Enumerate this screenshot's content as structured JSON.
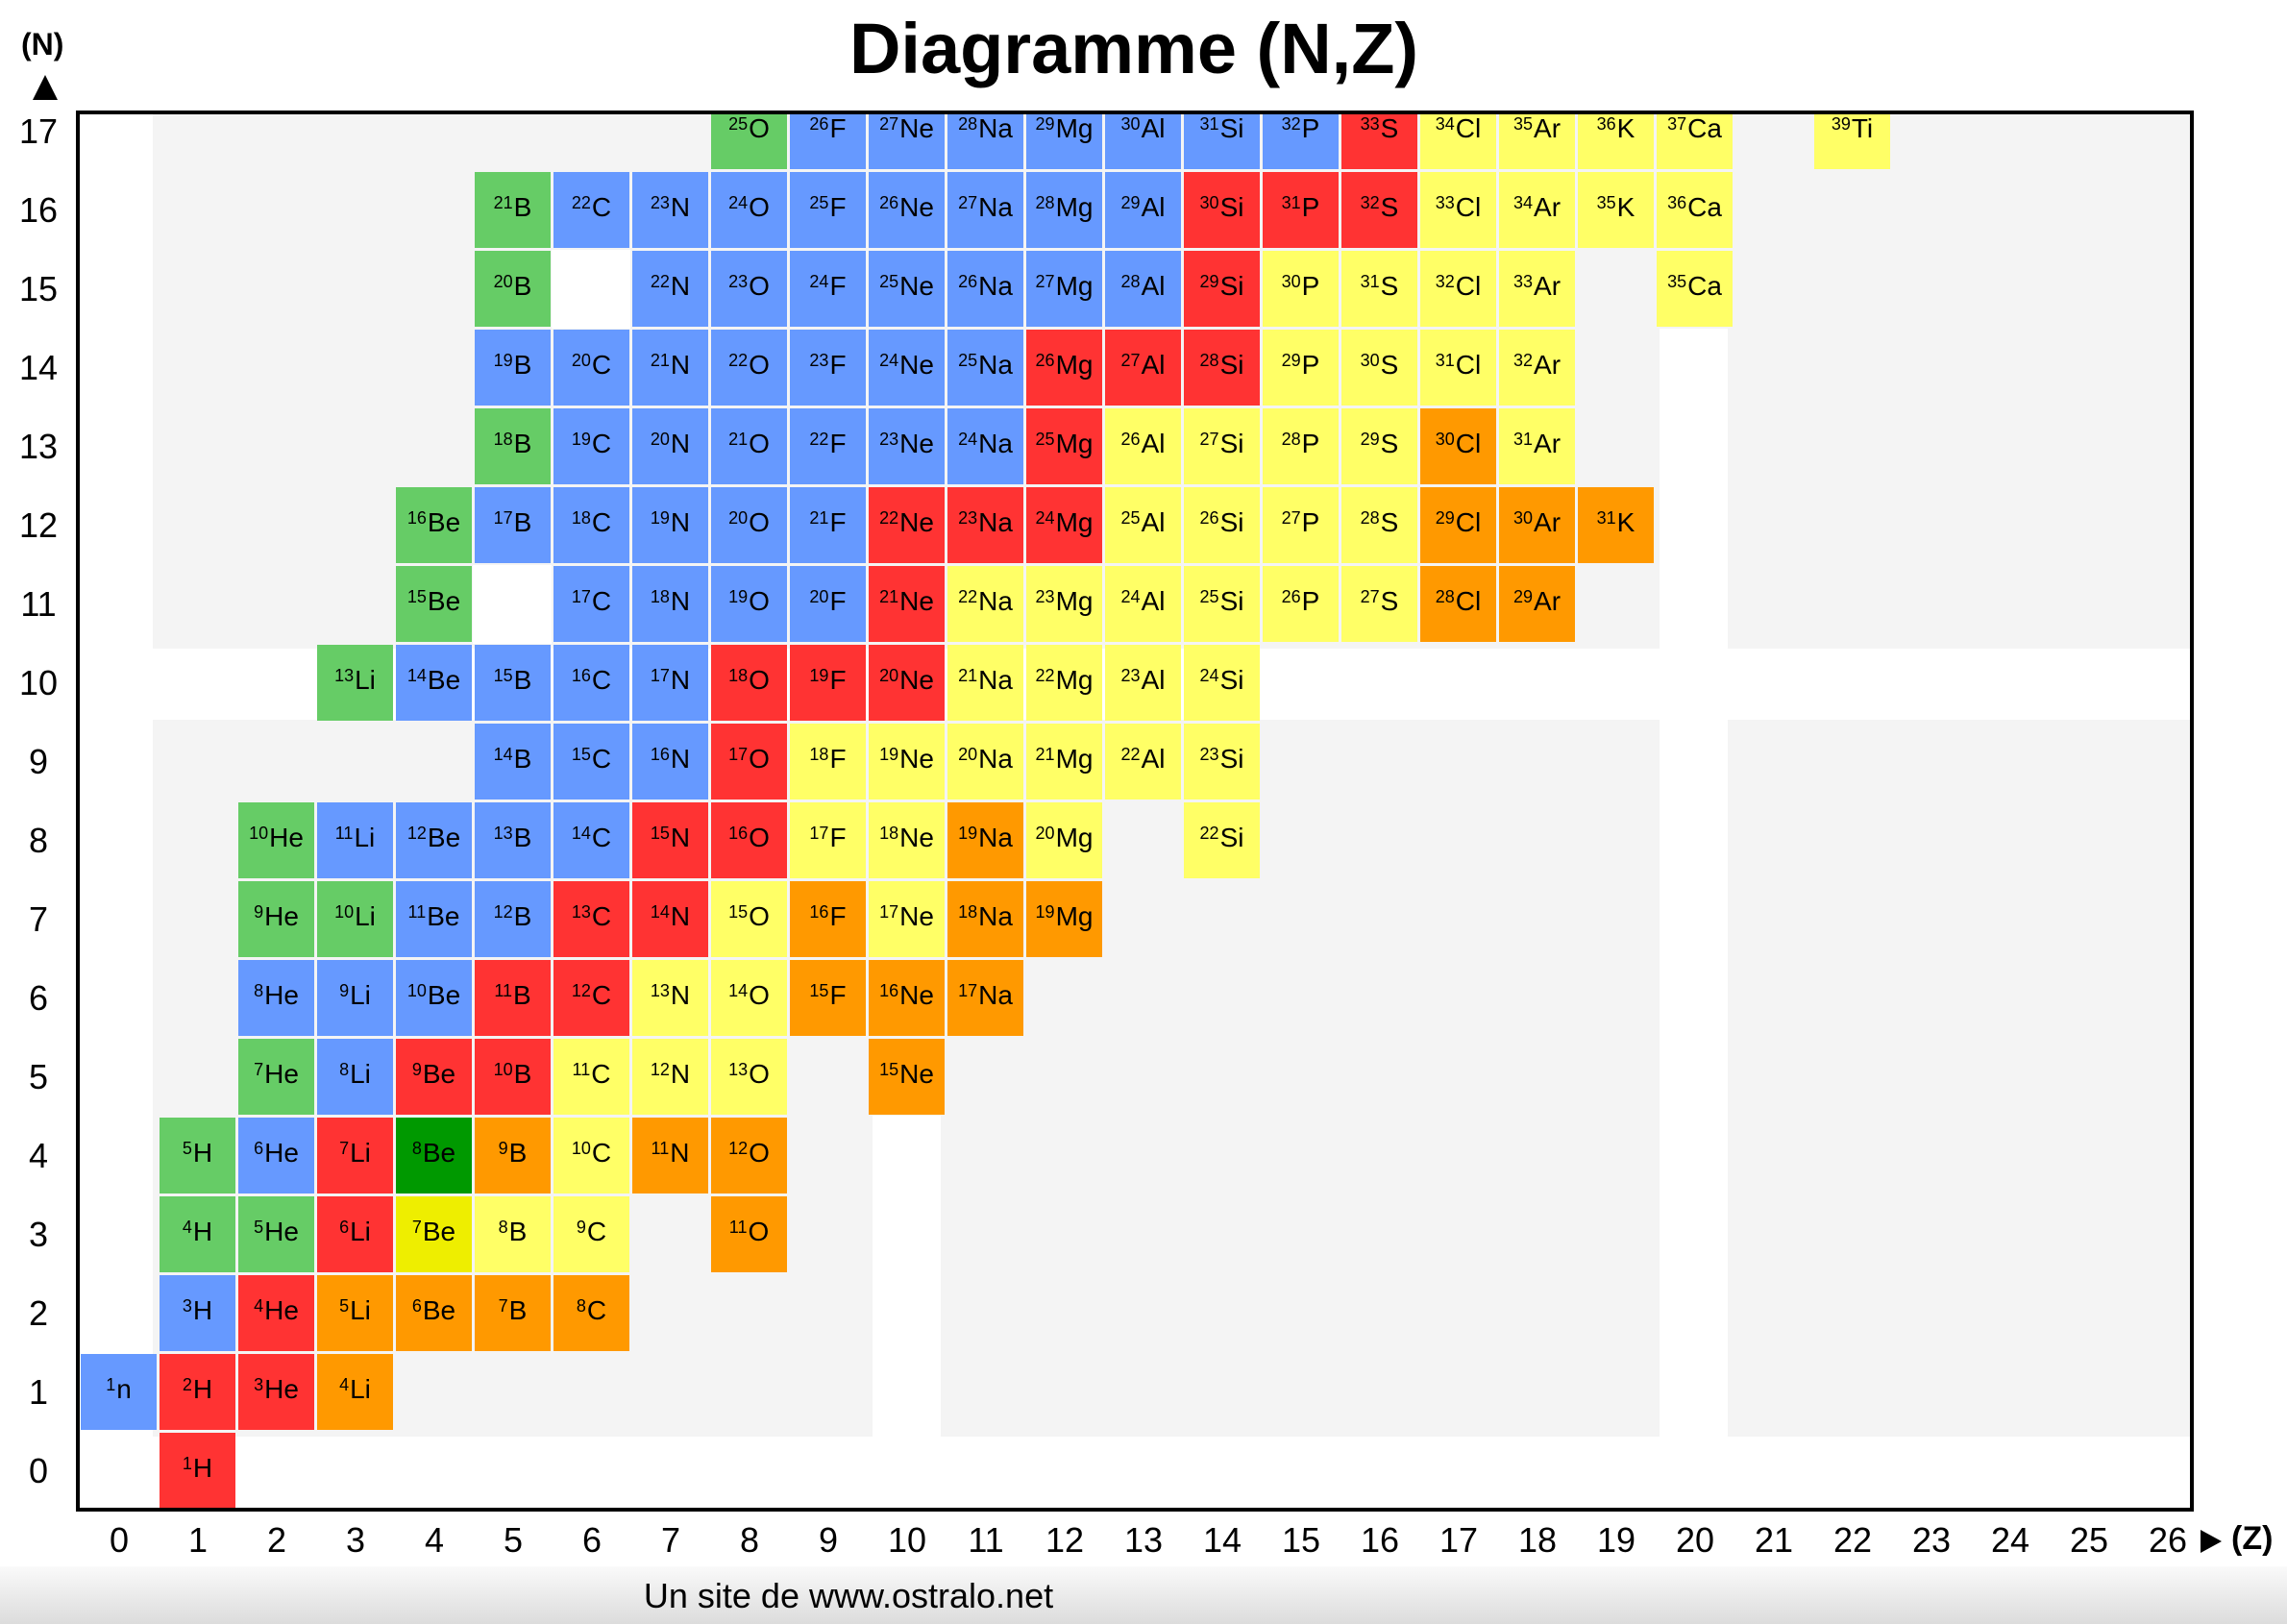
{
  "title": "Diagramme (N,Z)",
  "footer": "Un site de www.ostralo.net",
  "chart_data": {
    "type": "heatmap",
    "title": "Diagramme (N,Z)",
    "xlabel": "(Z)",
    "ylabel": "(N)",
    "x_ticks": [
      0,
      1,
      2,
      3,
      4,
      5,
      6,
      7,
      8,
      9,
      10,
      11,
      12,
      13,
      14,
      15,
      16,
      17,
      18,
      19,
      20,
      21,
      22,
      23,
      24,
      25,
      26
    ],
    "y_ticks": [
      0,
      1,
      2,
      3,
      4,
      5,
      6,
      7,
      8,
      9,
      10,
      11,
      12,
      13,
      14,
      15,
      16,
      17
    ],
    "xlim": [
      0,
      26
    ],
    "ylim": [
      0,
      17
    ],
    "colors": {
      "blue": "#6699ff",
      "green": "#66cc66",
      "red": "#ff3333",
      "yellow": "#ffff66",
      "orange": "#ff9900",
      "darkgreen": "#009900",
      "brightyellow": "#eeee00"
    },
    "cell_fields": [
      "Z",
      "N",
      "A",
      "symbol",
      "color"
    ],
    "cells": [
      [
        8,
        17,
        25,
        "O",
        "green"
      ],
      [
        9,
        17,
        26,
        "F",
        "blue"
      ],
      [
        10,
        17,
        27,
        "Ne",
        "blue"
      ],
      [
        11,
        17,
        28,
        "Na",
        "blue"
      ],
      [
        12,
        17,
        29,
        "Mg",
        "blue"
      ],
      [
        13,
        17,
        30,
        "Al",
        "blue"
      ],
      [
        14,
        17,
        31,
        "Si",
        "blue"
      ],
      [
        15,
        17,
        32,
        "P",
        "blue"
      ],
      [
        16,
        17,
        33,
        "S",
        "red"
      ],
      [
        17,
        17,
        34,
        "Cl",
        "yellow"
      ],
      [
        18,
        17,
        35,
        "Ar",
        "yellow"
      ],
      [
        19,
        17,
        36,
        "K",
        "yellow"
      ],
      [
        20,
        17,
        37,
        "Ca",
        "yellow"
      ],
      [
        22,
        17,
        39,
        "Ti",
        "yellow"
      ],
      [
        5,
        16,
        21,
        "B",
        "green"
      ],
      [
        6,
        16,
        22,
        "C",
        "blue"
      ],
      [
        7,
        16,
        23,
        "N",
        "blue"
      ],
      [
        8,
        16,
        24,
        "O",
        "blue"
      ],
      [
        9,
        16,
        25,
        "F",
        "blue"
      ],
      [
        10,
        16,
        26,
        "Ne",
        "blue"
      ],
      [
        11,
        16,
        27,
        "Na",
        "blue"
      ],
      [
        12,
        16,
        28,
        "Mg",
        "blue"
      ],
      [
        13,
        16,
        29,
        "Al",
        "blue"
      ],
      [
        14,
        16,
        30,
        "Si",
        "red"
      ],
      [
        15,
        16,
        31,
        "P",
        "red"
      ],
      [
        16,
        16,
        32,
        "S",
        "red"
      ],
      [
        17,
        16,
        33,
        "Cl",
        "yellow"
      ],
      [
        18,
        16,
        34,
        "Ar",
        "yellow"
      ],
      [
        19,
        16,
        35,
        "K",
        "yellow"
      ],
      [
        20,
        16,
        36,
        "Ca",
        "yellow"
      ],
      [
        5,
        15,
        20,
        "B",
        "green"
      ],
      [
        7,
        15,
        22,
        "N",
        "blue"
      ],
      [
        8,
        15,
        23,
        "O",
        "blue"
      ],
      [
        9,
        15,
        24,
        "F",
        "blue"
      ],
      [
        10,
        15,
        25,
        "Ne",
        "blue"
      ],
      [
        11,
        15,
        26,
        "Na",
        "blue"
      ],
      [
        12,
        15,
        27,
        "Mg",
        "blue"
      ],
      [
        13,
        15,
        28,
        "Al",
        "blue"
      ],
      [
        14,
        15,
        29,
        "Si",
        "red"
      ],
      [
        15,
        15,
        30,
        "P",
        "yellow"
      ],
      [
        16,
        15,
        31,
        "S",
        "yellow"
      ],
      [
        17,
        15,
        32,
        "Cl",
        "yellow"
      ],
      [
        18,
        15,
        33,
        "Ar",
        "yellow"
      ],
      [
        20,
        15,
        35,
        "Ca",
        "yellow"
      ],
      [
        5,
        14,
        19,
        "B",
        "blue"
      ],
      [
        6,
        14,
        20,
        "C",
        "blue"
      ],
      [
        7,
        14,
        21,
        "N",
        "blue"
      ],
      [
        8,
        14,
        22,
        "O",
        "blue"
      ],
      [
        9,
        14,
        23,
        "F",
        "blue"
      ],
      [
        10,
        14,
        24,
        "Ne",
        "blue"
      ],
      [
        11,
        14,
        25,
        "Na",
        "blue"
      ],
      [
        12,
        14,
        26,
        "Mg",
        "red"
      ],
      [
        13,
        14,
        27,
        "Al",
        "red"
      ],
      [
        14,
        14,
        28,
        "Si",
        "red"
      ],
      [
        15,
        14,
        29,
        "P",
        "yellow"
      ],
      [
        16,
        14,
        30,
        "S",
        "yellow"
      ],
      [
        17,
        14,
        31,
        "Cl",
        "yellow"
      ],
      [
        18,
        14,
        32,
        "Ar",
        "yellow"
      ],
      [
        5,
        13,
        18,
        "B",
        "green"
      ],
      [
        6,
        13,
        19,
        "C",
        "blue"
      ],
      [
        7,
        13,
        20,
        "N",
        "blue"
      ],
      [
        8,
        13,
        21,
        "O",
        "blue"
      ],
      [
        9,
        13,
        22,
        "F",
        "blue"
      ],
      [
        10,
        13,
        23,
        "Ne",
        "blue"
      ],
      [
        11,
        13,
        24,
        "Na",
        "blue"
      ],
      [
        12,
        13,
        25,
        "Mg",
        "red"
      ],
      [
        13,
        13,
        26,
        "Al",
        "yellow"
      ],
      [
        14,
        13,
        27,
        "Si",
        "yellow"
      ],
      [
        15,
        13,
        28,
        "P",
        "yellow"
      ],
      [
        16,
        13,
        29,
        "S",
        "yellow"
      ],
      [
        17,
        13,
        30,
        "Cl",
        "orange"
      ],
      [
        18,
        13,
        31,
        "Ar",
        "yellow"
      ],
      [
        4,
        12,
        16,
        "Be",
        "green"
      ],
      [
        5,
        12,
        17,
        "B",
        "blue"
      ],
      [
        6,
        12,
        18,
        "C",
        "blue"
      ],
      [
        7,
        12,
        19,
        "N",
        "blue"
      ],
      [
        8,
        12,
        20,
        "O",
        "blue"
      ],
      [
        9,
        12,
        21,
        "F",
        "blue"
      ],
      [
        10,
        12,
        22,
        "Ne",
        "red"
      ],
      [
        11,
        12,
        23,
        "Na",
        "red"
      ],
      [
        12,
        12,
        24,
        "Mg",
        "red"
      ],
      [
        13,
        12,
        25,
        "Al",
        "yellow"
      ],
      [
        14,
        12,
        26,
        "Si",
        "yellow"
      ],
      [
        15,
        12,
        27,
        "P",
        "yellow"
      ],
      [
        16,
        12,
        28,
        "S",
        "yellow"
      ],
      [
        17,
        12,
        29,
        "Cl",
        "orange"
      ],
      [
        18,
        12,
        30,
        "Ar",
        "orange"
      ],
      [
        19,
        12,
        31,
        "K",
        "orange"
      ],
      [
        4,
        11,
        15,
        "Be",
        "green"
      ],
      [
        6,
        11,
        17,
        "C",
        "blue"
      ],
      [
        7,
        11,
        18,
        "N",
        "blue"
      ],
      [
        8,
        11,
        19,
        "O",
        "blue"
      ],
      [
        9,
        11,
        20,
        "F",
        "blue"
      ],
      [
        10,
        11,
        21,
        "Ne",
        "red"
      ],
      [
        11,
        11,
        22,
        "Na",
        "yellow"
      ],
      [
        12,
        11,
        23,
        "Mg",
        "yellow"
      ],
      [
        13,
        11,
        24,
        "Al",
        "yellow"
      ],
      [
        14,
        11,
        25,
        "Si",
        "yellow"
      ],
      [
        15,
        11,
        26,
        "P",
        "yellow"
      ],
      [
        16,
        11,
        27,
        "S",
        "yellow"
      ],
      [
        17,
        11,
        28,
        "Cl",
        "orange"
      ],
      [
        18,
        11,
        29,
        "Ar",
        "orange"
      ],
      [
        3,
        10,
        13,
        "Li",
        "green"
      ],
      [
        4,
        10,
        14,
        "Be",
        "blue"
      ],
      [
        5,
        10,
        15,
        "B",
        "blue"
      ],
      [
        6,
        10,
        16,
        "C",
        "blue"
      ],
      [
        7,
        10,
        17,
        "N",
        "blue"
      ],
      [
        8,
        10,
        18,
        "O",
        "red"
      ],
      [
        9,
        10,
        19,
        "F",
        "red"
      ],
      [
        10,
        10,
        20,
        "Ne",
        "red"
      ],
      [
        11,
        10,
        21,
        "Na",
        "yellow"
      ],
      [
        12,
        10,
        22,
        "Mg",
        "yellow"
      ],
      [
        13,
        10,
        23,
        "Al",
        "yellow"
      ],
      [
        14,
        10,
        24,
        "Si",
        "yellow"
      ],
      [
        5,
        9,
        14,
        "B",
        "blue"
      ],
      [
        6,
        9,
        15,
        "C",
        "blue"
      ],
      [
        7,
        9,
        16,
        "N",
        "blue"
      ],
      [
        8,
        9,
        17,
        "O",
        "red"
      ],
      [
        9,
        9,
        18,
        "F",
        "yellow"
      ],
      [
        10,
        9,
        19,
        "Ne",
        "yellow"
      ],
      [
        11,
        9,
        20,
        "Na",
        "yellow"
      ],
      [
        12,
        9,
        21,
        "Mg",
        "yellow"
      ],
      [
        13,
        9,
        22,
        "Al",
        "yellow"
      ],
      [
        14,
        9,
        23,
        "Si",
        "yellow"
      ],
      [
        2,
        8,
        10,
        "He",
        "green"
      ],
      [
        3,
        8,
        11,
        "Li",
        "blue"
      ],
      [
        4,
        8,
        12,
        "Be",
        "blue"
      ],
      [
        5,
        8,
        13,
        "B",
        "blue"
      ],
      [
        6,
        8,
        14,
        "C",
        "blue"
      ],
      [
        7,
        8,
        15,
        "N",
        "red"
      ],
      [
        8,
        8,
        16,
        "O",
        "red"
      ],
      [
        9,
        8,
        17,
        "F",
        "yellow"
      ],
      [
        10,
        8,
        18,
        "Ne",
        "yellow"
      ],
      [
        11,
        8,
        19,
        "Na",
        "orange"
      ],
      [
        12,
        8,
        20,
        "Mg",
        "yellow"
      ],
      [
        14,
        8,
        22,
        "Si",
        "yellow"
      ],
      [
        2,
        7,
        9,
        "He",
        "green"
      ],
      [
        3,
        7,
        10,
        "Li",
        "green"
      ],
      [
        4,
        7,
        11,
        "Be",
        "blue"
      ],
      [
        5,
        7,
        12,
        "B",
        "blue"
      ],
      [
        6,
        7,
        13,
        "C",
        "red"
      ],
      [
        7,
        7,
        14,
        "N",
        "red"
      ],
      [
        8,
        7,
        15,
        "O",
        "yellow"
      ],
      [
        9,
        7,
        16,
        "F",
        "orange"
      ],
      [
        10,
        7,
        17,
        "Ne",
        "yellow"
      ],
      [
        11,
        7,
        18,
        "Na",
        "orange"
      ],
      [
        12,
        7,
        19,
        "Mg",
        "orange"
      ],
      [
        2,
        6,
        8,
        "He",
        "blue"
      ],
      [
        3,
        6,
        9,
        "Li",
        "blue"
      ],
      [
        4,
        6,
        10,
        "Be",
        "blue"
      ],
      [
        5,
        6,
        11,
        "B",
        "red"
      ],
      [
        6,
        6,
        12,
        "C",
        "red"
      ],
      [
        7,
        6,
        13,
        "N",
        "yellow"
      ],
      [
        8,
        6,
        14,
        "O",
        "yellow"
      ],
      [
        9,
        6,
        15,
        "F",
        "orange"
      ],
      [
        10,
        6,
        16,
        "Ne",
        "orange"
      ],
      [
        11,
        6,
        17,
        "Na",
        "orange"
      ],
      [
        2,
        5,
        7,
        "He",
        "green"
      ],
      [
        3,
        5,
        8,
        "Li",
        "blue"
      ],
      [
        4,
        5,
        9,
        "Be",
        "red"
      ],
      [
        5,
        5,
        10,
        "B",
        "red"
      ],
      [
        6,
        5,
        11,
        "C",
        "yellow"
      ],
      [
        7,
        5,
        12,
        "N",
        "yellow"
      ],
      [
        8,
        5,
        13,
        "O",
        "yellow"
      ],
      [
        10,
        5,
        15,
        "Ne",
        "orange"
      ],
      [
        1,
        4,
        5,
        "H",
        "green"
      ],
      [
        2,
        4,
        6,
        "He",
        "blue"
      ],
      [
        3,
        4,
        7,
        "Li",
        "red"
      ],
      [
        4,
        4,
        8,
        "Be",
        "darkgreen"
      ],
      [
        5,
        4,
        9,
        "B",
        "orange"
      ],
      [
        6,
        4,
        10,
        "C",
        "yellow"
      ],
      [
        7,
        4,
        11,
        "N",
        "orange"
      ],
      [
        8,
        4,
        12,
        "O",
        "orange"
      ],
      [
        1,
        3,
        4,
        "H",
        "green"
      ],
      [
        2,
        3,
        5,
        "He",
        "green"
      ],
      [
        3,
        3,
        6,
        "Li",
        "red"
      ],
      [
        4,
        3,
        7,
        "Be",
        "brightyellow"
      ],
      [
        5,
        3,
        8,
        "B",
        "yellow"
      ],
      [
        6,
        3,
        9,
        "C",
        "yellow"
      ],
      [
        8,
        3,
        11,
        "O",
        "orange"
      ],
      [
        1,
        2,
        3,
        "H",
        "blue"
      ],
      [
        2,
        2,
        4,
        "He",
        "red"
      ],
      [
        3,
        2,
        5,
        "Li",
        "orange"
      ],
      [
        4,
        2,
        6,
        "Be",
        "orange"
      ],
      [
        5,
        2,
        7,
        "B",
        "orange"
      ],
      [
        6,
        2,
        8,
        "C",
        "orange"
      ],
      [
        0,
        1,
        1,
        "n",
        "blue"
      ],
      [
        1,
        1,
        2,
        "H",
        "red"
      ],
      [
        2,
        1,
        3,
        "He",
        "red"
      ],
      [
        3,
        1,
        4,
        "Li",
        "orange"
      ],
      [
        1,
        0,
        1,
        "H",
        "red"
      ]
    ]
  }
}
